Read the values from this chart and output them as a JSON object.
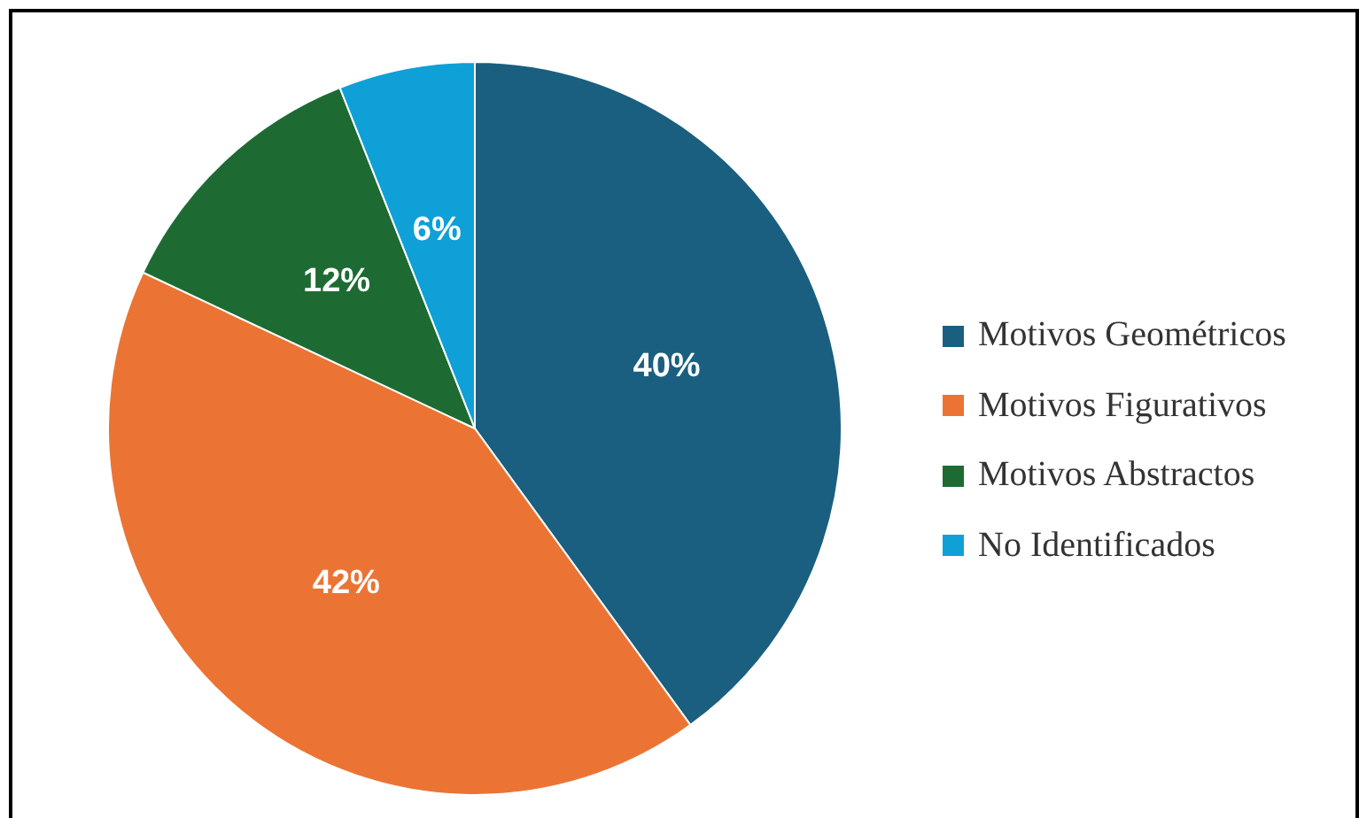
{
  "chart_data": {
    "type": "pie",
    "categories": [
      "Motivos Geométricos",
      "Motivos Figurativos",
      "Motivos Abstractos",
      "No Identificados"
    ],
    "values": [
      40,
      42,
      12,
      6
    ],
    "value_labels": [
      "40%",
      "42%",
      "12%",
      "6%"
    ],
    "colors": [
      "#1a5f80",
      "#eb7434",
      "#1d6b33",
      "#0fa0d8"
    ],
    "legend": "right"
  }
}
